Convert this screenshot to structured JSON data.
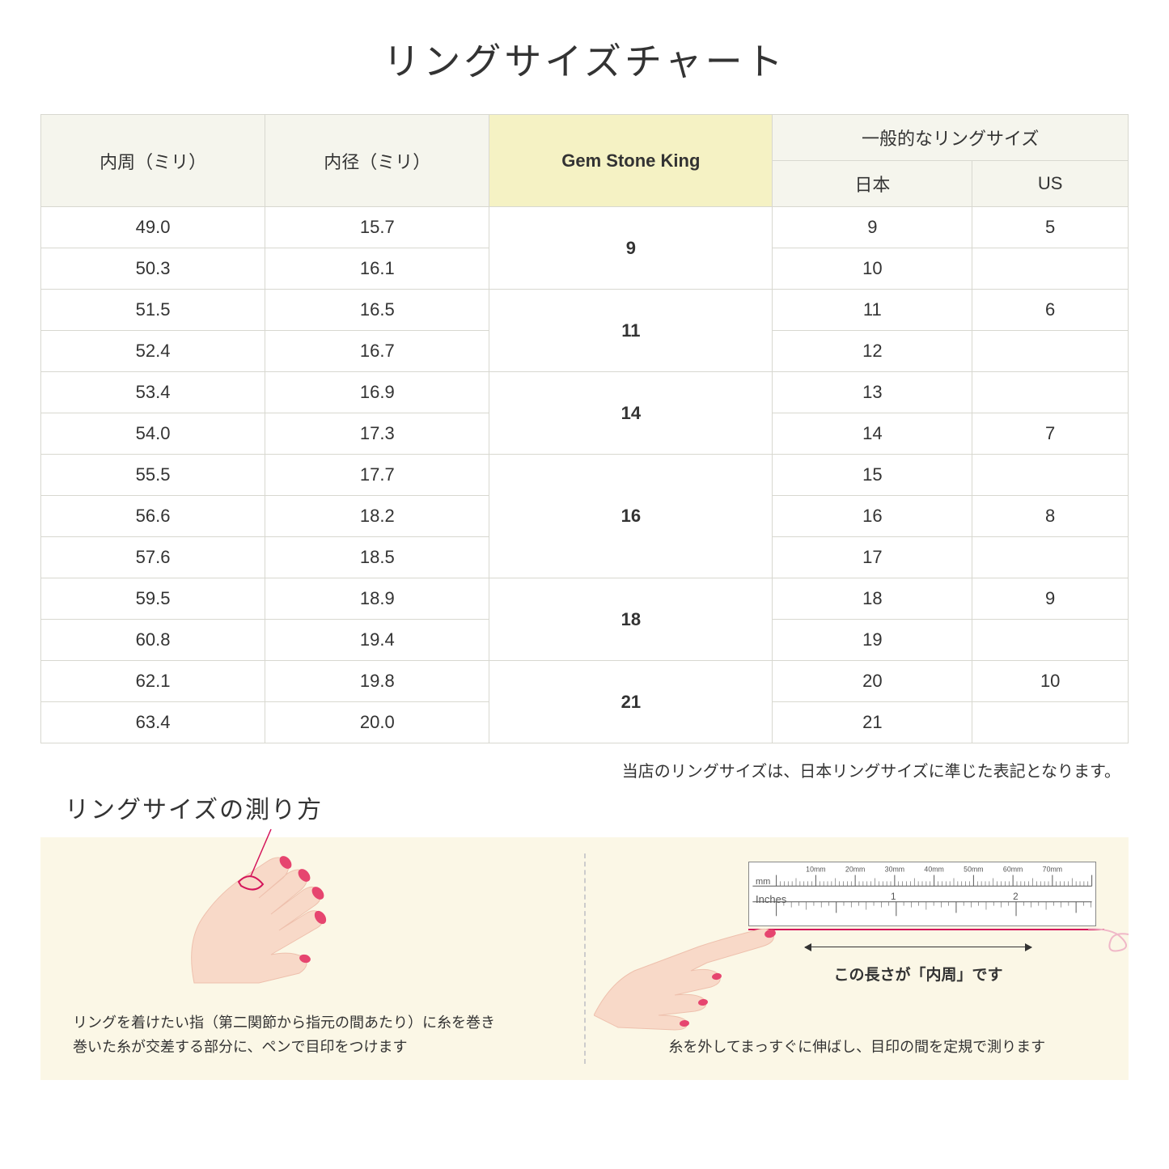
{
  "title": "リングサイズチャート",
  "table": {
    "headers": {
      "circumference": "内周（ミリ）",
      "diameter": "内径（ミリ）",
      "gsk": "Gem Stone King",
      "general": "一般的なリングサイズ",
      "jp": "日本",
      "us": "US"
    },
    "groups": [
      {
        "gsk": "9",
        "rows": [
          {
            "c": "49.0",
            "d": "15.7",
            "jp": "9",
            "us": "5"
          },
          {
            "c": "50.3",
            "d": "16.1",
            "jp": "10",
            "us": ""
          }
        ]
      },
      {
        "gsk": "11",
        "rows": [
          {
            "c": "51.5",
            "d": "16.5",
            "jp": "11",
            "us": "6"
          },
          {
            "c": "52.4",
            "d": "16.7",
            "jp": "12",
            "us": ""
          }
        ]
      },
      {
        "gsk": "14",
        "rows": [
          {
            "c": "53.4",
            "d": "16.9",
            "jp": "13",
            "us": ""
          },
          {
            "c": "54.0",
            "d": "17.3",
            "jp": "14",
            "us": "7"
          }
        ]
      },
      {
        "gsk": "16",
        "rows": [
          {
            "c": "55.5",
            "d": "17.7",
            "jp": "15",
            "us": ""
          },
          {
            "c": "56.6",
            "d": "18.2",
            "jp": "16",
            "us": "8"
          },
          {
            "c": "57.6",
            "d": "18.5",
            "jp": "17",
            "us": ""
          }
        ]
      },
      {
        "gsk": "18",
        "rows": [
          {
            "c": "59.5",
            "d": "18.9",
            "jp": "18",
            "us": "9"
          },
          {
            "c": "60.8",
            "d": "19.4",
            "jp": "19",
            "us": ""
          }
        ]
      },
      {
        "gsk": "21",
        "rows": [
          {
            "c": "62.1",
            "d": "19.8",
            "jp": "20",
            "us": "10"
          },
          {
            "c": "63.4",
            "d": "20.0",
            "jp": "21",
            "us": ""
          }
        ]
      }
    ]
  },
  "note": "当店のリングサイズは、日本リングサイズに準じた表記となります。",
  "subtitle": "リングサイズの測り方",
  "instructions": {
    "left": "リングを着けたい指（第二関節から指元の間あたり）に糸を巻き\n巻いた糸が交差する部分に、ペンで目印をつけます",
    "right": "糸を外してまっすぐに伸ばし、目印の間を定規で測ります",
    "arrow_label": "この長さが「内周」です",
    "ruler_mm": "mm",
    "ruler_in": "Inches",
    "ruler_mm_marks": [
      "10mm",
      "20mm",
      "30mm",
      "40mm",
      "50mm",
      "60mm",
      "70mm"
    ]
  },
  "colors": {
    "header_bg": "#f5f5ed",
    "highlight_bg": "#f5f2c4",
    "border": "#d8d8d0",
    "instruction_bg": "#fbf7e6",
    "skin": "#f8d9c8",
    "skin_dark": "#eec0ad",
    "nail": "#e6456f",
    "thread": "#d4145a"
  }
}
